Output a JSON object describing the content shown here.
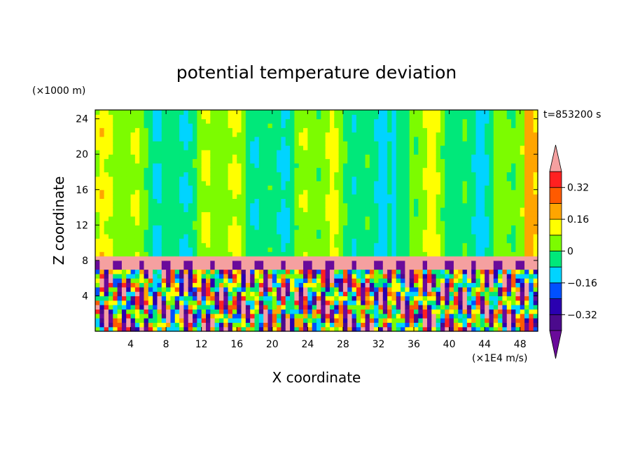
{
  "chart_data": {
    "type": "heatmap",
    "title": "potential temperature deviation",
    "xlabel": "X coordinate",
    "ylabel": "Z coordinate",
    "x_unit": "(×1E4 m/s)",
    "y_unit": "(×1000 m)",
    "time_label": "t=853200 s",
    "xlim": [
      0,
      50
    ],
    "ylim": [
      0,
      25
    ],
    "x_ticks": [
      4,
      8,
      12,
      16,
      20,
      24,
      28,
      32,
      36,
      40,
      44,
      48
    ],
    "y_ticks": [
      4,
      8,
      12,
      16,
      20,
      24
    ],
    "colorbar": {
      "levels": [
        -0.4,
        -0.32,
        -0.24,
        -0.16,
        -0.08,
        0,
        0.08,
        0.16,
        0.24,
        0.32,
        0.4
      ],
      "tick_labels": [
        "0.32",
        "0.16",
        "0",
        "−0.16",
        "−0.32"
      ],
      "tick_values": [
        0.32,
        0.16,
        0,
        -0.16,
        -0.32
      ],
      "colors": [
        "#4b0a8c",
        "#2a00b0",
        "#0050ff",
        "#00d4ff",
        "#00e87a",
        "#7cfc00",
        "#ffff00",
        "#ffa500",
        "#ff5a00",
        "#ff2020"
      ],
      "under_color": "#6a0a9a",
      "over_color": "#f5a0a0"
    },
    "fields": {
      "upper_layer": "weak deviations, mostly between -0.08 and 0.08",
      "tropopause_band": "strong positive deviation (above 0.4) near z = 8",
      "lower_layer": "turbulent mixed deviations between below -0.4 and 0.4"
    }
  }
}
